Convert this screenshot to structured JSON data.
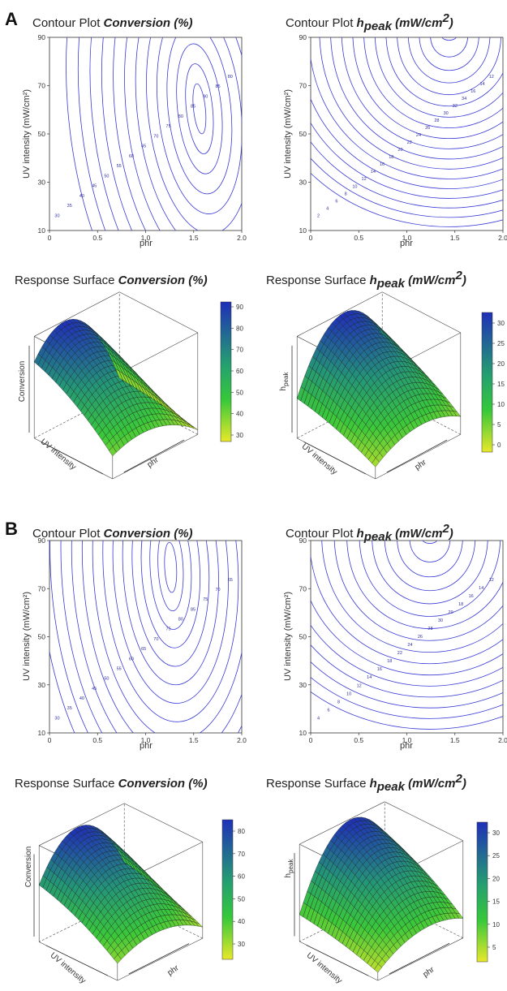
{
  "panels": {
    "A": {
      "letter": "A",
      "contour_conv": {
        "title_prefix": "Contour Plot ",
        "title_emph": "Conversion (%)",
        "xlabel": "phr",
        "ylabel": "UV intensity (mW/cm²)",
        "xticks": [
          "0",
          "0.5",
          "1.0",
          "1.5",
          "2.0"
        ],
        "yticks": [
          "10",
          "30",
          "50",
          "70",
          "90"
        ],
        "level_labels": [
          "30",
          "35",
          "40",
          "45",
          "50",
          "55",
          "60",
          "65",
          "70",
          "75",
          "80",
          "85",
          "90",
          "85",
          "80"
        ]
      },
      "contour_h": {
        "title_prefix": "Contour Plot ",
        "title_emph": "h",
        "title_sub": "peak",
        "title_unit": " (mW/cm",
        "title_sup": "2",
        "title_close": ")",
        "xlabel": "phr",
        "ylabel": "UV intensity (mW/cm²)",
        "xticks": [
          "0",
          "0.5",
          "1.0",
          "1.5",
          "2.0"
        ],
        "yticks": [
          "10",
          "30",
          "50",
          "70",
          "90"
        ],
        "level_labels": [
          "2",
          "4",
          "6",
          "8",
          "10",
          "12",
          "14",
          "16",
          "18",
          "20",
          "22",
          "24",
          "26",
          "28",
          "30",
          "32",
          "34",
          "16",
          "14",
          "12"
        ]
      },
      "surf_conv": {
        "title_prefix": "Response Surface ",
        "title_emph": "Conversion (%)",
        "zlabel": "Conversion",
        "xlabel": "phr",
        "ylabel": "UV intensity",
        "colorbar": [
          "90",
          "80",
          "70",
          "60",
          "50",
          "40",
          "30"
        ]
      },
      "surf_h": {
        "title_prefix": "Response Surface ",
        "title_emph": "h",
        "title_sub": "peak",
        "title_unit": " (mW/cm",
        "title_sup": "2",
        "title_close": ")",
        "zlabel": "h",
        "zlabel_sub": "peak",
        "xlabel": "phr",
        "ylabel": "UV intensity",
        "colorbar": [
          "30",
          "25",
          "20",
          "15",
          "10",
          "5",
          "0"
        ]
      }
    },
    "B": {
      "letter": "B",
      "contour_conv": {
        "title_prefix": "Contour Plot ",
        "title_emph": "Conversion (%)",
        "xlabel": "phr",
        "ylabel": "UV intensity (mW/cm²)",
        "xticks": [
          "0",
          "0.5",
          "1.0",
          "1.5",
          "2.0"
        ],
        "yticks": [
          "10",
          "30",
          "50",
          "70",
          "90"
        ],
        "level_labels": [
          "30",
          "35",
          "40",
          "45",
          "50",
          "55",
          "60",
          "65",
          "70",
          "75",
          "80",
          "85",
          "75",
          "70",
          "65"
        ]
      },
      "contour_h": {
        "title_prefix": "Contour Plot ",
        "title_emph": "h",
        "title_sub": "peak",
        "title_unit": " (mW/cm",
        "title_sup": "2",
        "title_close": ")",
        "xlabel": "phr",
        "ylabel": "UV intensity (mW/cm²)",
        "xticks": [
          "0",
          "0.5",
          "1.0",
          "1.5",
          "2.0"
        ],
        "yticks": [
          "10",
          "30",
          "50",
          "70",
          "90"
        ],
        "level_labels": [
          "4",
          "6",
          "8",
          "10",
          "12",
          "14",
          "16",
          "18",
          "22",
          "24",
          "26",
          "28",
          "30",
          "20",
          "18",
          "16",
          "14",
          "12"
        ]
      },
      "surf_conv": {
        "title_prefix": "Response Surface ",
        "title_emph": "Conversion (%)",
        "zlabel": "Conversion",
        "xlabel": "phr",
        "ylabel": "UV intensity",
        "colorbar": [
          "80",
          "70",
          "60",
          "50",
          "40",
          "30"
        ]
      },
      "surf_h": {
        "title_prefix": "Response Surface ",
        "title_emph": "h",
        "title_sub": "peak",
        "title_unit": " (mW/cm",
        "title_sup": "2",
        "title_close": ")",
        "zlabel": "h",
        "zlabel_sub": "peak",
        "xlabel": "phr",
        "ylabel": "UV intensity",
        "colorbar": [
          "30",
          "25",
          "20",
          "15",
          "10",
          "5"
        ]
      }
    }
  },
  "colors": {
    "contour_line": "#3a3ad6",
    "surface_high": "#1f2fb8",
    "surface_mid": "#2bb84a",
    "surface_low": "#e8e82a",
    "frame": "#333333"
  },
  "chart_data": [
    {
      "type": "contour",
      "panel": "A",
      "title": "Contour Plot Conversion (%)",
      "xlabel": "phr",
      "ylabel": "UV intensity (mW/cm2)",
      "xlim": [
        0,
        2.0
      ],
      "ylim": [
        10,
        90
      ],
      "levels": [
        30,
        35,
        40,
        45,
        50,
        55,
        60,
        65,
        70,
        75,
        80,
        85,
        90
      ],
      "peak": {
        "x": 1.55,
        "y": 60,
        "value": 90
      }
    },
    {
      "type": "contour",
      "panel": "A",
      "title": "Contour Plot hpeak (mW/cm2)",
      "xlabel": "phr",
      "ylabel": "UV intensity (mW/cm2)",
      "xlim": [
        0,
        2.0
      ],
      "ylim": [
        10,
        90
      ],
      "levels": [
        2,
        4,
        6,
        8,
        10,
        12,
        14,
        16,
        18,
        20,
        22,
        24,
        26,
        28,
        30,
        32,
        34
      ],
      "peak": {
        "x": 1.45,
        "y": 90,
        "value": 34
      }
    },
    {
      "type": "surface",
      "panel": "A",
      "title": "Response Surface Conversion (%)",
      "zlabel": "Conversion",
      "colorbar_range": [
        25,
        92
      ]
    },
    {
      "type": "surface",
      "panel": "A",
      "title": "Response Surface hpeak (mW/cm2)",
      "zlabel": "hpeak",
      "colorbar_range": [
        0,
        34
      ]
    },
    {
      "type": "contour",
      "panel": "B",
      "title": "Contour Plot Conversion (%)",
      "xlabel": "phr",
      "ylabel": "UV intensity (mW/cm2)",
      "xlim": [
        0,
        2.0
      ],
      "ylim": [
        10,
        90
      ],
      "levels": [
        30,
        35,
        40,
        45,
        50,
        55,
        60,
        65,
        70,
        75,
        80,
        85
      ],
      "peak": {
        "x": 1.25,
        "y": 80,
        "value": 85
      }
    },
    {
      "type": "contour",
      "panel": "B",
      "title": "Contour Plot hpeak (mW/cm2)",
      "xlabel": "phr",
      "ylabel": "UV intensity (mW/cm2)",
      "xlim": [
        0,
        2.0
      ],
      "ylim": [
        10,
        90
      ],
      "levels": [
        4,
        6,
        8,
        10,
        12,
        14,
        16,
        18,
        20,
        22,
        24,
        26,
        28,
        30
      ],
      "peak": {
        "x": 1.35,
        "y": 90,
        "value": 31
      }
    },
    {
      "type": "surface",
      "panel": "B",
      "title": "Response Surface Conversion (%)",
      "zlabel": "Conversion",
      "colorbar_range": [
        25,
        85
      ]
    },
    {
      "type": "surface",
      "panel": "B",
      "title": "Response Surface hpeak (mW/cm2)",
      "zlabel": "hpeak",
      "colorbar_range": [
        2,
        33
      ]
    }
  ]
}
